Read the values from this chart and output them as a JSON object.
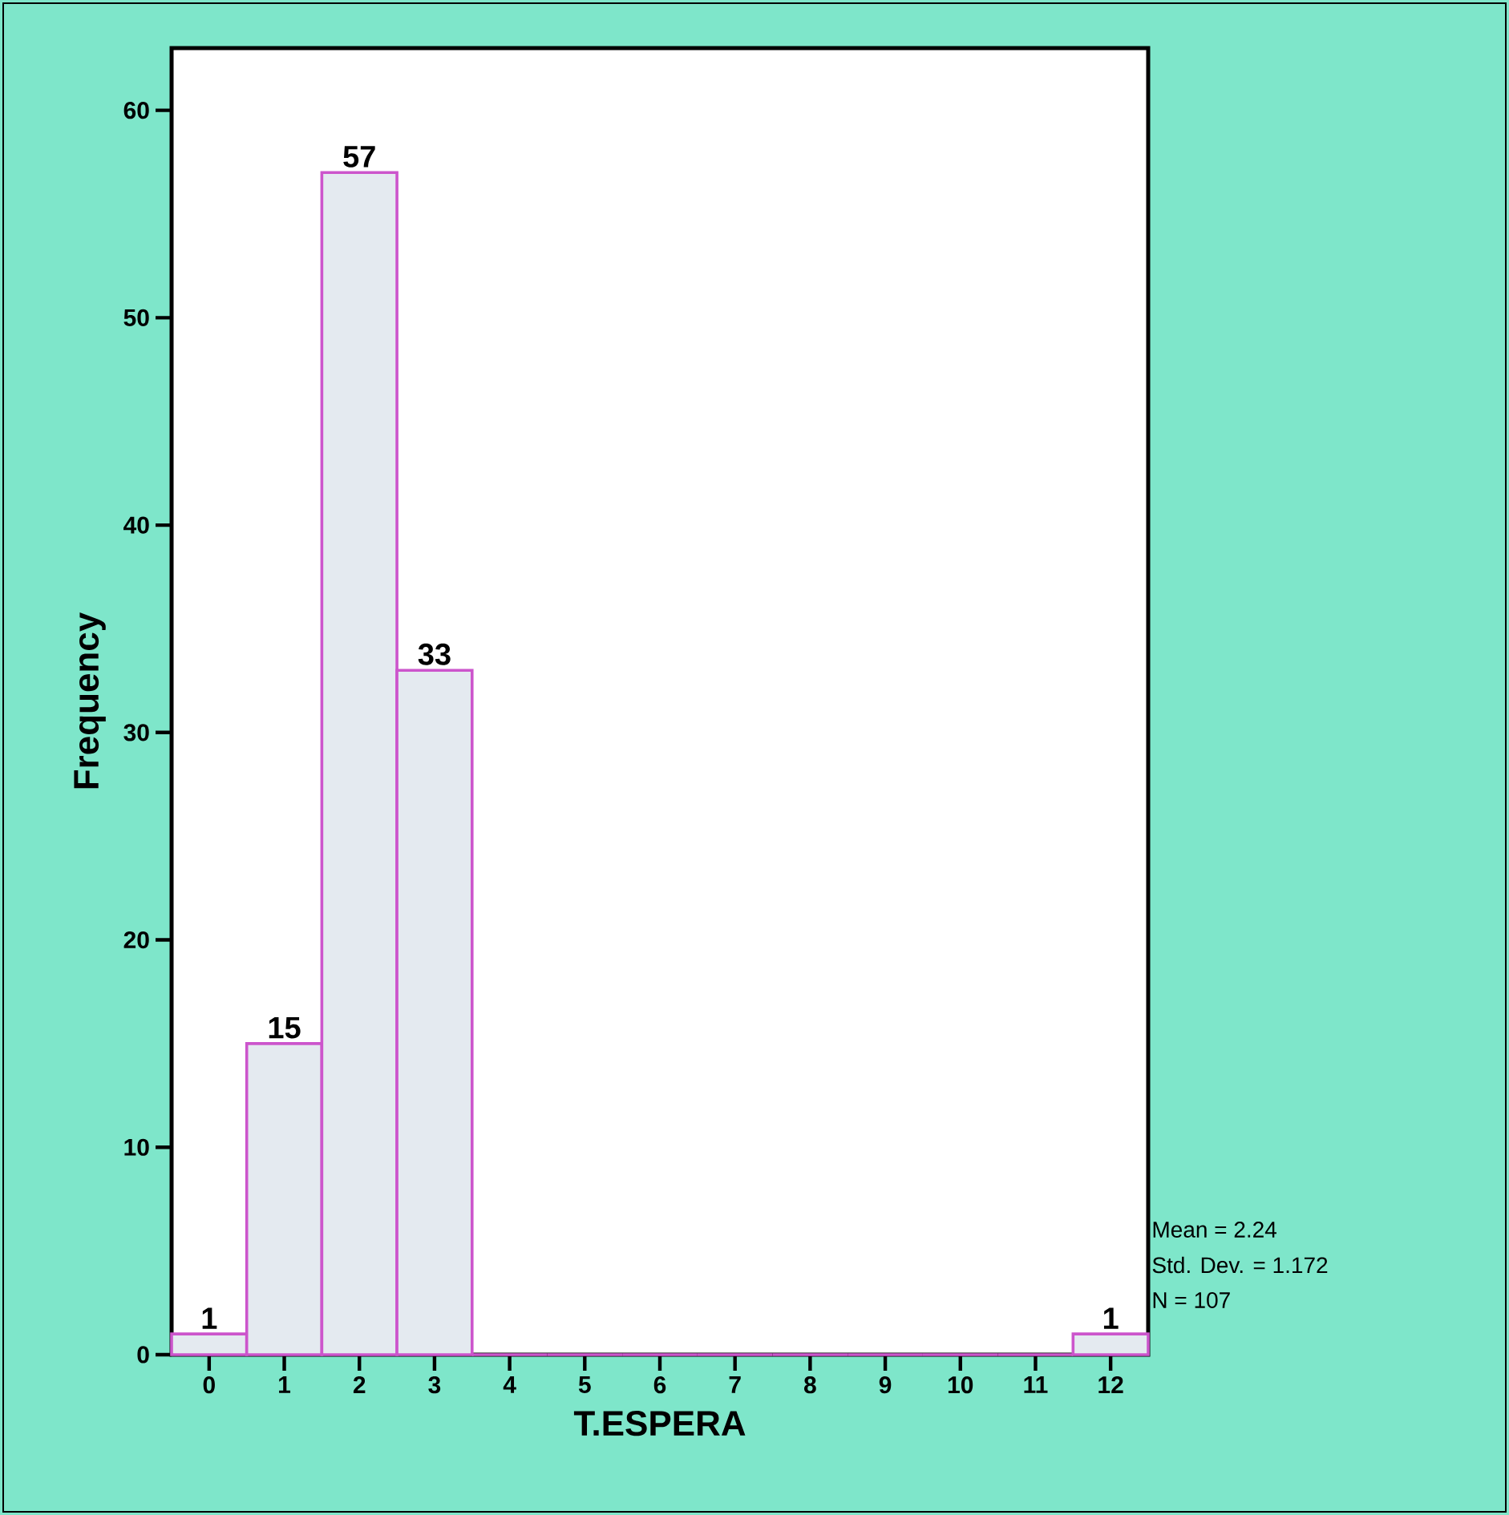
{
  "chart_data": {
    "type": "histogram",
    "xlabel": "T.ESPERA",
    "ylabel": "Frequency",
    "bins": [
      -0.5,
      0.5,
      1.5,
      2.5,
      3.5,
      4.5,
      5.5,
      6.5,
      7.5,
      8.5,
      9.5,
      10.5,
      11.5,
      12.5
    ],
    "values": [
      1,
      15,
      57,
      33,
      0,
      0,
      0,
      0,
      0,
      0,
      0,
      0,
      1
    ],
    "value_labels": [
      "1",
      "15",
      "57",
      "33",
      null,
      null,
      null,
      null,
      null,
      null,
      null,
      null,
      "1"
    ],
    "color": "#e4eaf0",
    "xlim": [
      -0.5,
      12.5
    ],
    "ylim": [
      0,
      63
    ],
    "xticks": [
      0,
      1,
      2,
      3,
      4,
      5,
      6,
      7,
      8,
      9,
      10,
      11,
      12
    ],
    "yticks": [
      0,
      10,
      20,
      30,
      40,
      50,
      60
    ],
    "annotations": [
      "Mean = 2.24",
      "Std. Dev. = 1.172",
      "N = 107"
    ]
  }
}
